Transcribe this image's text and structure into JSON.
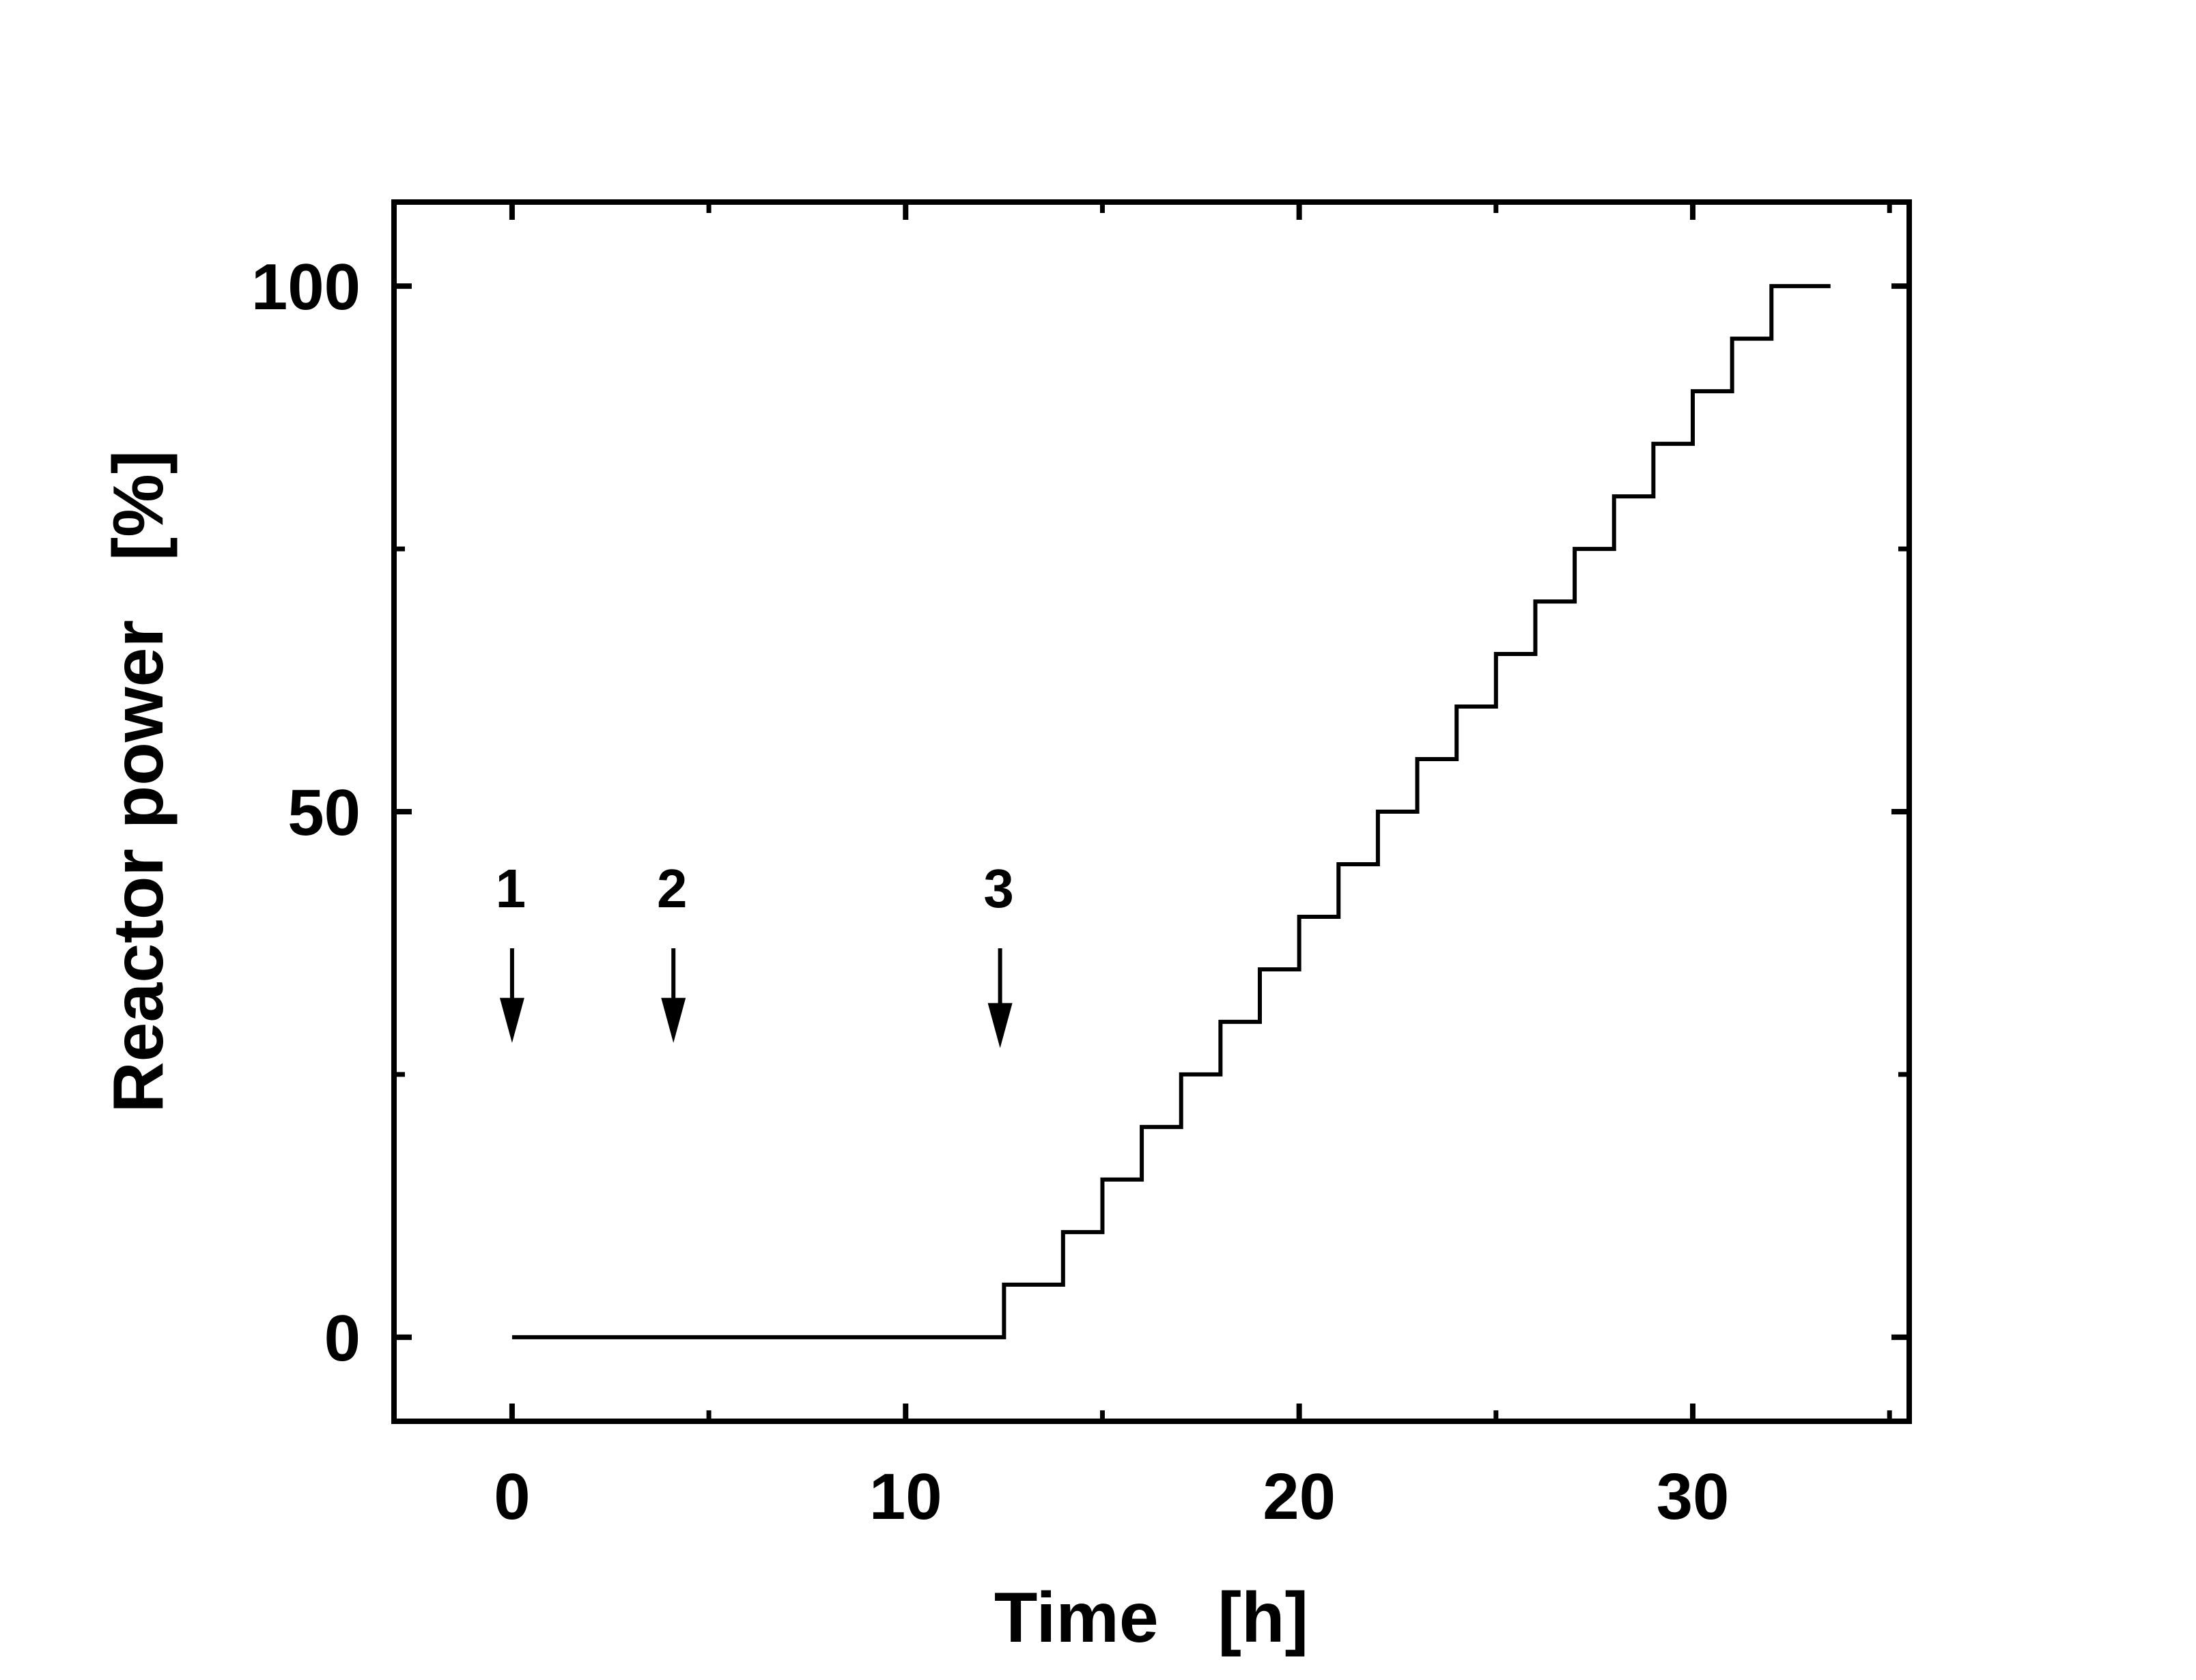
{
  "chart_data": {
    "type": "line",
    "title": "",
    "xlabel": "Time   [h]",
    "ylabel": "Reactor power   [%]",
    "xlim": [
      -3,
      35.5
    ],
    "ylim": [
      -8,
      108
    ],
    "x_ticks": [
      0,
      10,
      20,
      30
    ],
    "x_minor_ticks": [
      5,
      15,
      25,
      35
    ],
    "y_ticks": [
      0,
      50,
      100
    ],
    "y_minor_ticks": [
      25,
      75
    ],
    "grid": false,
    "legend": "none",
    "line_color": "#000000",
    "series": [
      {
        "step": "post",
        "x": [
          0,
          12.5,
          14,
          15,
          16,
          17,
          18,
          19,
          20,
          21,
          22,
          23,
          24,
          25,
          26,
          27,
          28,
          29,
          30,
          31,
          32,
          33.5
        ],
        "y": [
          0,
          5,
          10,
          15,
          20,
          25,
          30,
          35,
          40,
          45,
          50,
          55,
          60,
          65,
          70,
          75,
          80,
          85,
          90,
          95,
          100,
          100
        ]
      }
    ],
    "annotations": [
      {
        "label": "1",
        "x": 0,
        "y_from": 37,
        "y_to": 28
      },
      {
        "label": "2",
        "x": 4.1,
        "y_from": 37,
        "y_to": 28
      },
      {
        "label": "3",
        "x": 12.4,
        "y_from": 37,
        "y_to": 27.5
      }
    ]
  }
}
